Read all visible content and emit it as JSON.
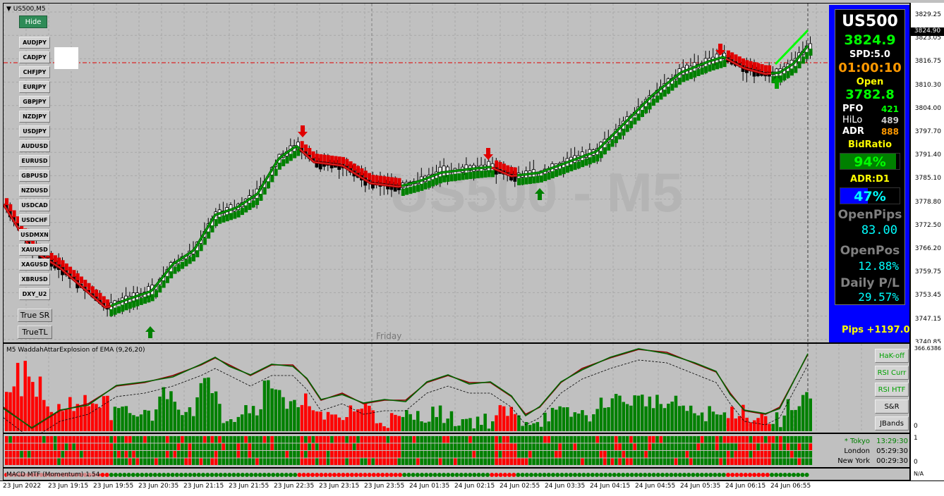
{
  "chart_header": {
    "symbol_label": "US500,M5",
    "hide_button": "Hide",
    "watermark": "US500 - M5",
    "day_label": "Friday"
  },
  "symbol_buttons": [
    "AUDJPY",
    "CADJPY",
    "CHFJPY",
    "EURJPY",
    "GBPJPY",
    "NZDJPY",
    "USDJPY",
    "AUDUSD",
    "EURUSD",
    "GBPUSD",
    "NZDUSD",
    "USDCAD",
    "USDCHF",
    "USDMXN",
    "XAUUSD",
    "XAGUSD",
    "XBRUSD",
    "DXY_U2"
  ],
  "tool_buttons": {
    "true_sr": "True SR",
    "true_tl": "TrueTL"
  },
  "price_axis": {
    "labels": [
      "3829.25",
      "3823.05",
      "3816.75",
      "3810.30",
      "3804.00",
      "3797.70",
      "3791.40",
      "3785.10",
      "3778.80",
      "3772.50",
      "3766.20",
      "3759.75",
      "3753.45",
      "3747.15",
      "3740.85"
    ],
    "current_price": "3824.90"
  },
  "info_panel": {
    "symbol": "US500",
    "price": "3824.9",
    "spread": "SPD:5.0",
    "timer": "01:00:10",
    "open_label": "Open",
    "open_value": "3782.8",
    "pfo_label": "PFO",
    "pfo_value": "421",
    "hilo_label": "HiLo",
    "hilo_value": "489",
    "adr_label": "ADR",
    "adr_value": "888",
    "bid_ratio_label": "BidRatio",
    "bid_ratio_value": "94%",
    "bid_ratio_fill": 0.94,
    "adr_d1_label": "ADR:D1",
    "adr_d1_value": "47%",
    "adr_d1_fill": 0.47,
    "open_pips_label": "OpenPips",
    "open_pips_value": "83.00",
    "open_pos_label": "OpenPos",
    "open_pos_value": "12.88%",
    "daily_pl_label": "Daily P/L",
    "daily_pl_value": "29.57%",
    "pips_total": "Pips +1197.0",
    "colors": {
      "panel_bg": "#0000ff",
      "green": "#00ff00",
      "orange": "#ff9900",
      "cyan": "#00ffff",
      "yellow": "#ffff00"
    }
  },
  "indicator1": {
    "title": "M5 WaddahAttarExplosion of EMA (9,26,20)",
    "scale_top": "366.6386",
    "scale_zero": "0",
    "buttons": [
      "HaK-off",
      "RSI Curr",
      "RSI HTF",
      "S&R",
      "JBands"
    ]
  },
  "sessions": [
    {
      "name": "* Tokyo",
      "time": "13:29:30",
      "color": "#008000"
    },
    {
      "name": "London",
      "time": "05:29:30",
      "color": "#000000"
    },
    {
      "name": "New York",
      "time": "00:29:30",
      "color": "#000000"
    }
  ],
  "indicator2": {
    "scale_top": "1",
    "scale_zero": "0"
  },
  "indicator3": {
    "title": "MACD MTF (Momentum) 1.54",
    "scale_label": "N/A"
  },
  "time_axis": [
    "23 Jun 2022",
    "23 Jun 19:15",
    "23 Jun 19:55",
    "23 Jun 20:35",
    "23 Jun 21:15",
    "23 Jun 21:55",
    "23 Jun 22:35",
    "23 Jun 23:15",
    "23 Jun 23:55",
    "24 Jun 01:35",
    "24 Jun 02:15",
    "24 Jun 02:55",
    "24 Jun 03:35",
    "24 Jun 04:15",
    "24 Jun 04:55",
    "24 Jun 05:35",
    "24 Jun 06:15",
    "24 Jun 06:55"
  ]
}
